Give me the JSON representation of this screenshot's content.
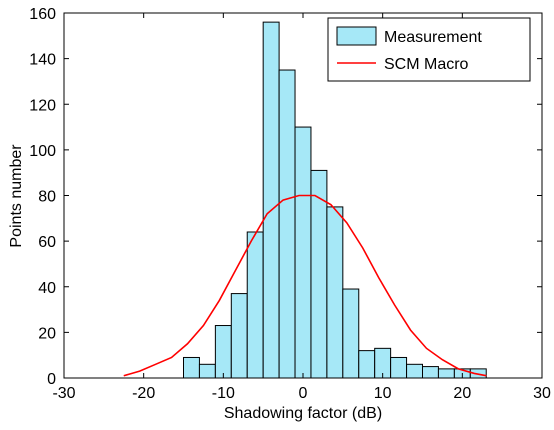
{
  "chart_data": {
    "type": "bar",
    "title": "",
    "xlabel": "Shadowing factor (dB)",
    "ylabel": "Points number",
    "xlim": [
      -30,
      30
    ],
    "ylim": [
      0,
      160
    ],
    "x_ticks": [
      -30,
      -20,
      -10,
      0,
      10,
      20,
      30
    ],
    "y_ticks": [
      0,
      20,
      40,
      60,
      80,
      100,
      120,
      140,
      160
    ],
    "grid": false,
    "legend_position": "top-right",
    "series": [
      {
        "name": "Measurement",
        "type": "histogram",
        "color": "#a6e8f7",
        "edge_color": "#000000",
        "bin_width": 2,
        "bin_start": [
          -15,
          -13,
          -11,
          -9,
          -7,
          -5,
          -3,
          -1,
          1,
          3,
          5,
          7,
          9,
          11,
          13,
          15,
          17,
          19,
          21
        ],
        "values": [
          9,
          6,
          23,
          37,
          64,
          156,
          135,
          110,
          91,
          75,
          39,
          12,
          13,
          9,
          6,
          5,
          4,
          4,
          4
        ]
      },
      {
        "name": "SCM Macro",
        "type": "line",
        "color": "#ff0000",
        "x": [
          -22.5,
          -20.5,
          -18.5,
          -16.5,
          -14.5,
          -12.5,
          -10.5,
          -8.5,
          -6.5,
          -4.5,
          -2.5,
          -0.5,
          1.5,
          3.5,
          5.5,
          7.5,
          9.5,
          11.5,
          13.5,
          15.5,
          17.5,
          19.5,
          21.5,
          23
        ],
        "y": [
          1,
          3,
          6,
          9,
          15,
          23,
          34,
          47,
          60,
          72,
          78,
          80,
          80,
          76,
          68,
          57,
          44,
          32,
          21,
          13,
          8,
          4,
          2,
          1
        ]
      }
    ]
  }
}
